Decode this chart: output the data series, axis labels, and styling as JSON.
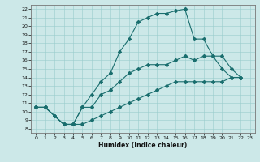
{
  "title": "",
  "xlabel": "Humidex (Indice chaleur)",
  "xlim": [
    -0.5,
    23.5
  ],
  "ylim": [
    7.5,
    22.5
  ],
  "xticks": [
    0,
    1,
    2,
    3,
    4,
    5,
    6,
    7,
    8,
    9,
    10,
    11,
    12,
    13,
    14,
    15,
    16,
    17,
    18,
    19,
    20,
    21,
    22,
    23
  ],
  "yticks": [
    8,
    9,
    10,
    11,
    12,
    13,
    14,
    15,
    16,
    17,
    18,
    19,
    20,
    21,
    22
  ],
  "bg_color": "#cce8e8",
  "line_color": "#1a6e6e",
  "line1_x": [
    0,
    1,
    2,
    3,
    4,
    5,
    6,
    7,
    8,
    9,
    10,
    11,
    12,
    13,
    14,
    15,
    16,
    17,
    18,
    19,
    20,
    21,
    22
  ],
  "line1_y": [
    10.5,
    10.5,
    9.5,
    8.5,
    8.5,
    10.5,
    12.0,
    13.5,
    14.5,
    17.0,
    18.5,
    20.5,
    21.0,
    21.5,
    21.5,
    21.8,
    22.0,
    18.5,
    18.5,
    16.5,
    15.0,
    14.0,
    14.0
  ],
  "line2_x": [
    0,
    1,
    2,
    3,
    4,
    5,
    6,
    7,
    8,
    9,
    10,
    11,
    12,
    13,
    14,
    15,
    16,
    17,
    18,
    19,
    20,
    21,
    22
  ],
  "line2_y": [
    10.5,
    10.5,
    9.5,
    8.5,
    8.5,
    10.5,
    10.5,
    12.0,
    12.5,
    13.5,
    14.5,
    15.0,
    15.5,
    15.5,
    15.5,
    16.0,
    16.5,
    16.0,
    16.5,
    16.5,
    16.5,
    15.0,
    14.0
  ],
  "line3_x": [
    0,
    1,
    2,
    3,
    4,
    5,
    6,
    7,
    8,
    9,
    10,
    11,
    12,
    13,
    14,
    15,
    16,
    17,
    18,
    19,
    20,
    21,
    22
  ],
  "line3_y": [
    10.5,
    10.5,
    9.5,
    8.5,
    8.5,
    8.5,
    9.0,
    9.5,
    10.0,
    10.5,
    11.0,
    11.5,
    12.0,
    12.5,
    13.0,
    13.5,
    13.5,
    13.5,
    13.5,
    13.5,
    13.5,
    14.0,
    14.0
  ]
}
